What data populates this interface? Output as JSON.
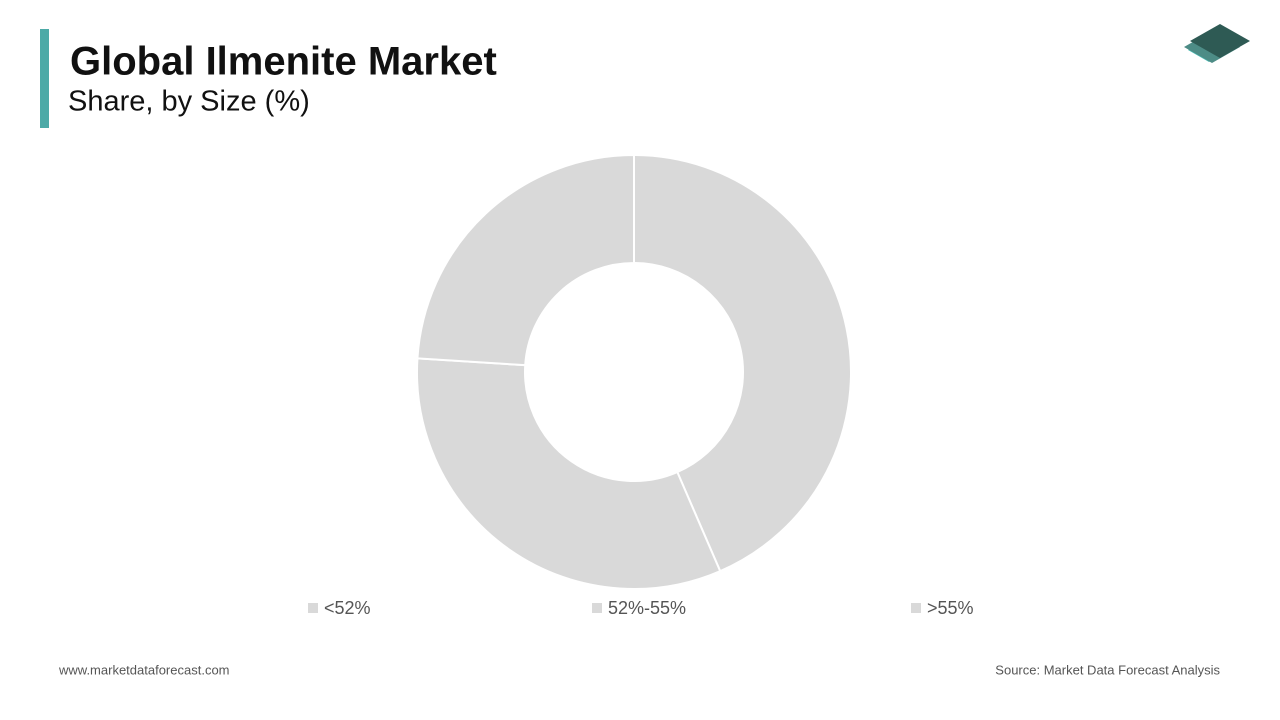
{
  "chart_data": {
    "type": "pie",
    "title": "Global Ilmenite Market",
    "subtitle": "Share, by Size (%)",
    "categories": [
      "<52%",
      "52%-55%",
      ">55%"
    ],
    "values": [
      43.5,
      32.5,
      24
    ],
    "colors": [
      "#d9d9d9",
      "#d9d9d9",
      "#d9d9d9"
    ],
    "legend": "bottom"
  },
  "footer": {
    "website": "www.marketdataforecast.com",
    "source": "Source: Market Data Forecast Analysis"
  }
}
